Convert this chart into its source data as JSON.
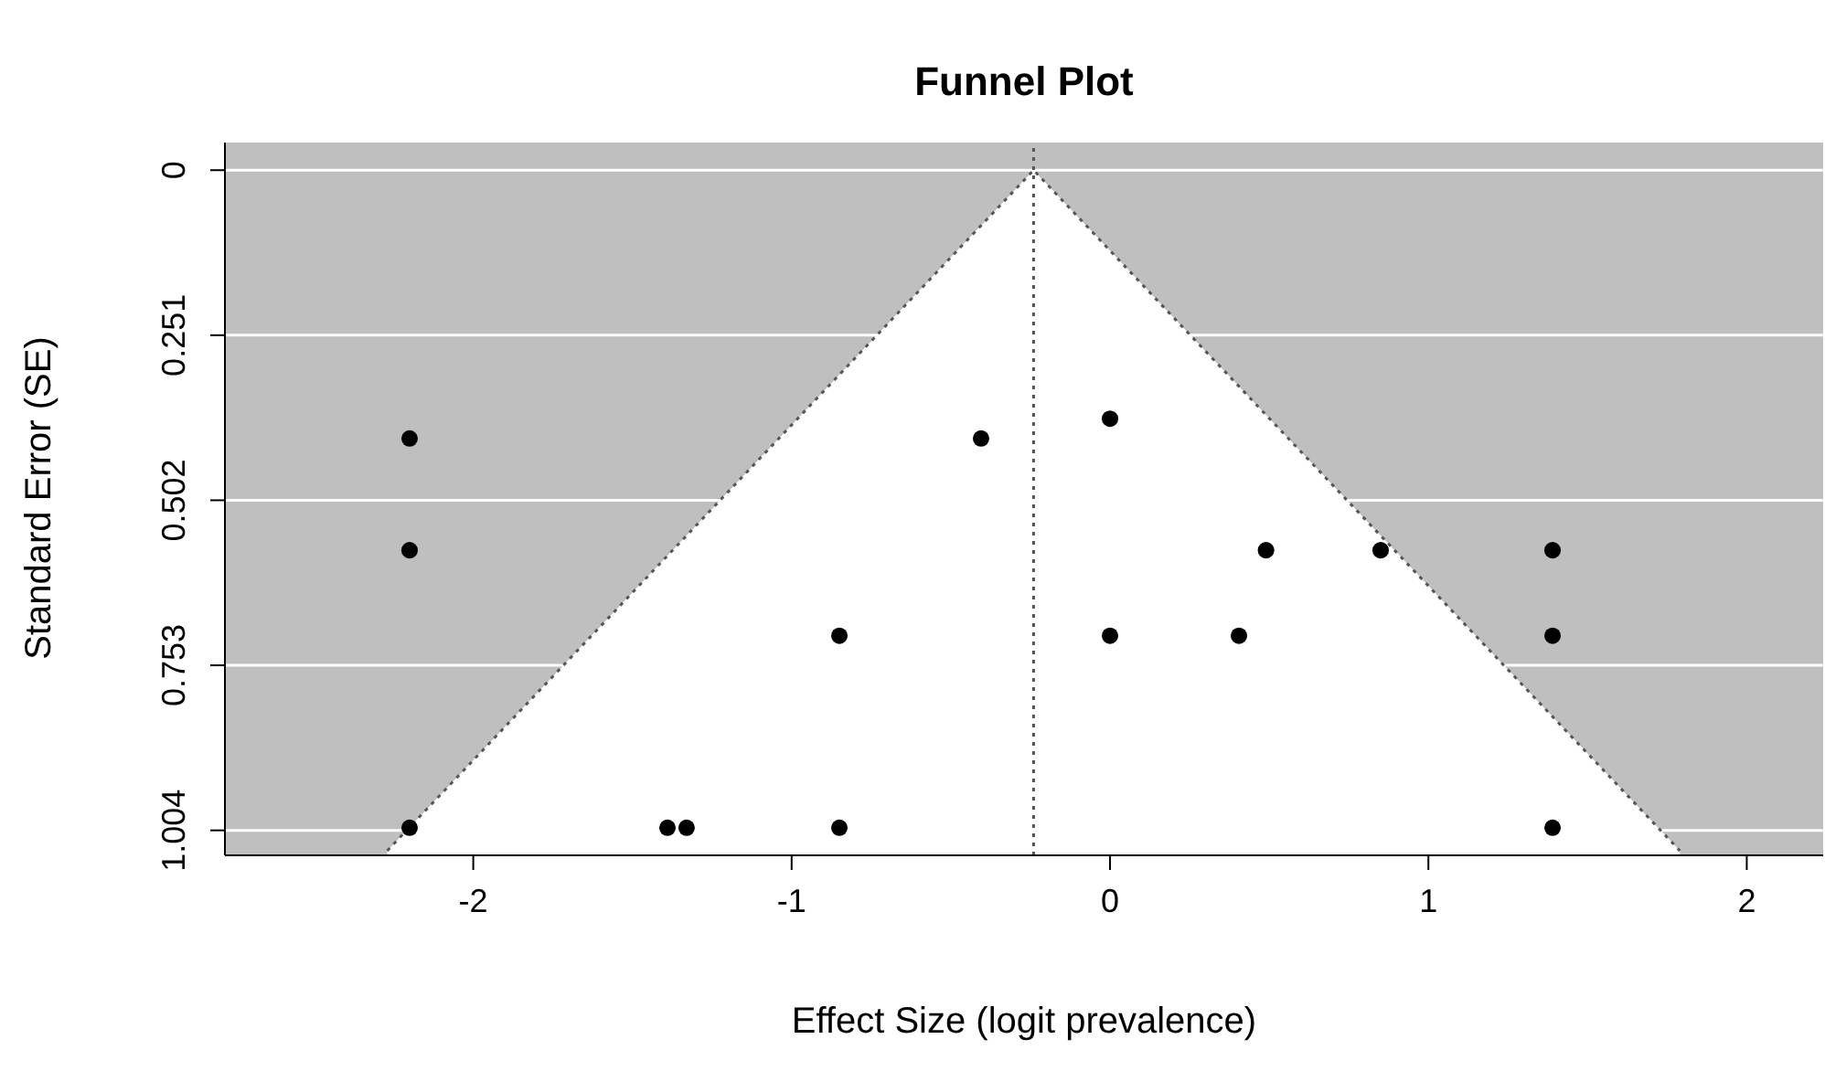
{
  "chart_data": {
    "type": "scatter",
    "title": "Funnel Plot",
    "xlabel": "Effect Size (logit prevalence)",
    "ylabel": "Standard Error (SE)",
    "xlim": [
      -2.78,
      2.24
    ],
    "ylim": [
      1.042,
      -0.042
    ],
    "xticks": [
      -2,
      -1,
      0,
      1,
      2
    ],
    "yticks": [
      0,
      0.251,
      0.502,
      0.753,
      1.004
    ],
    "grid": "y",
    "marker": "circle",
    "series": [
      {
        "type": "area",
        "color": "#555555",
        "line_style": "dotted",
        "marker": "none",
        "x": [
          -2.27,
          -0.24,
          1.79
        ],
        "values": [
          1.035,
          0,
          1.035
        ]
      },
      {
        "color": "#000000",
        "x": [
          -2.2,
          -2.2,
          -0.405,
          0,
          0.49,
          0.85,
          1.39,
          -0.85,
          0,
          0.405,
          1.39,
          -2.2,
          -1.39,
          -1.33,
          -0.85,
          1.39
        ],
        "values": [
          0.408,
          0.578,
          0.408,
          0.378,
          0.578,
          0.578,
          0.578,
          0.708,
          0.708,
          0.708,
          0.708,
          1.0,
          1.0,
          1.0,
          1.0,
          1.0
        ]
      }
    ],
    "ref_lines": [
      {
        "axis": "x",
        "value": -0.24,
        "color": "#555555",
        "line_style": "dotted"
      }
    ]
  }
}
